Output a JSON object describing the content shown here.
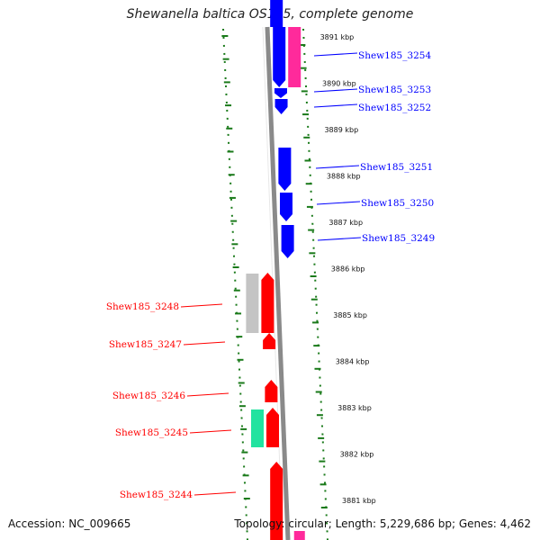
{
  "title": "Shewanella baltica OS185, complete genome",
  "footer": {
    "accession": "Accession: NC_009665",
    "topology": "Topology: circular; Length: 5,229,686 bp; Genes: 4,462"
  },
  "colors": {
    "forward_gene": "#ff0000",
    "reverse_gene": "#0000ff",
    "pseudo_gene": "#ff2a9b",
    "rna_gene": "#22e3a0",
    "other_feature": "#c4c4c4",
    "backbone": "#8a8a8a",
    "tick": "#1a7a1a"
  },
  "tick_labels": [
    "3891 kbp",
    "3890 kbp",
    "3889 kbp",
    "3888 kbp",
    "3887 kbp",
    "3886 kbp",
    "3885 kbp",
    "3884 kbp",
    "3883 kbp",
    "3882 kbp",
    "3881 kbp"
  ],
  "genes_right": [
    "Shew185_3254",
    "Shew185_3253",
    "Shew185_3252",
    "Shew185_3251",
    "Shew185_3250",
    "Shew185_3249"
  ],
  "genes_left": [
    "Shew185_3248",
    "Shew185_3247",
    "Shew185_3246",
    "Shew185_3245",
    "Shew185_3244"
  ]
}
